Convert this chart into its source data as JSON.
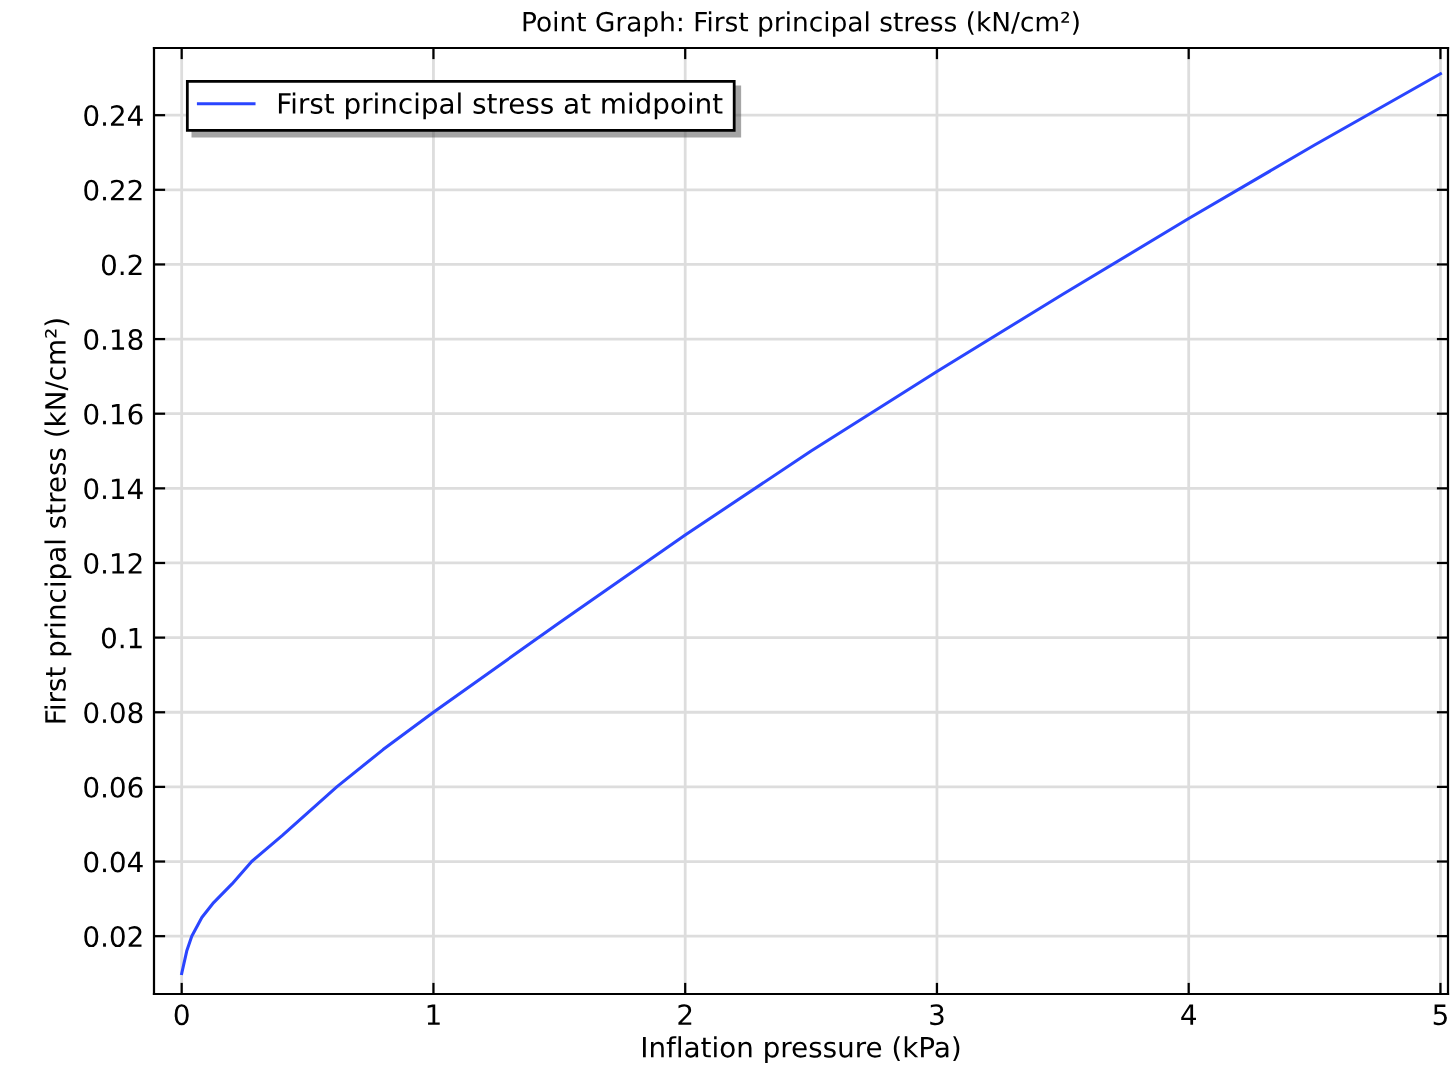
{
  "chart_data": {
    "type": "line",
    "title": "Point Graph: First principal stress (kN/cm²)",
    "xlabel": "Inflation pressure (kPa)",
    "ylabel": "First principal stress (kN/cm²)",
    "x": [
      0,
      0.02,
      0.04,
      0.08,
      0.127,
      0.2,
      0.278,
      0.4,
      0.616,
      0.8,
      1,
      1.5,
      2,
      2.5,
      3,
      3.5,
      4,
      4.5,
      5
    ],
    "series": [
      {
        "name": "First principal stress at midpoint",
        "color": "#2a45ff",
        "values": [
          0.01,
          0.016,
          0.02,
          0.025,
          0.029,
          0.034,
          0.04,
          0.047,
          0.06,
          0.07,
          0.08,
          0.104,
          0.1275,
          0.15,
          0.1713,
          0.192,
          0.2123,
          0.232,
          0.2511
        ]
      }
    ],
    "xlim": [
      -0.11,
      5.03
    ],
    "ylim": [
      0.0045,
      0.258
    ],
    "xticks": [
      0,
      1,
      2,
      3,
      4,
      5
    ],
    "yticks": [
      0.02,
      0.04,
      0.06,
      0.08,
      0.1,
      0.12,
      0.14,
      0.16,
      0.18,
      0.2,
      0.22,
      0.24
    ],
    "grid": true,
    "legend": "top left",
    "line_style": "solid",
    "marker": "none"
  }
}
